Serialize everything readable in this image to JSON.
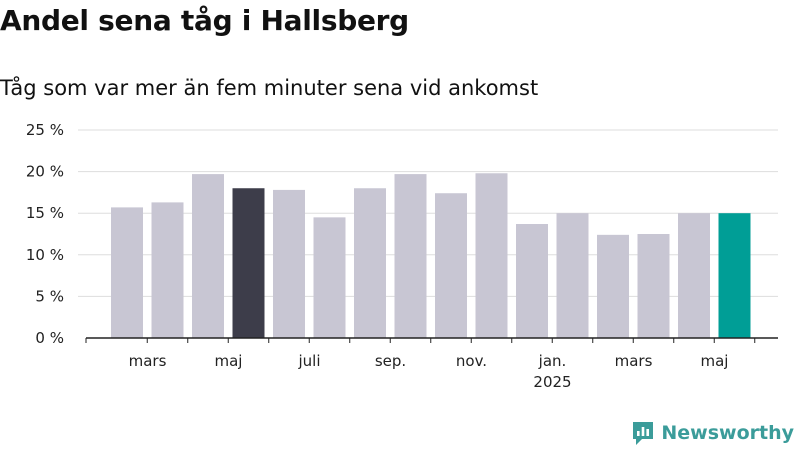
{
  "title": "Andel sena tåg i Hallsberg",
  "subtitle": "Tåg som var mer än fem minuter sena vid ankomst",
  "brand": "Newsworthy",
  "colors": {
    "bar": "#c8c6d3",
    "highlight_dark": "#3d3d4a",
    "highlight_teal": "#009e96",
    "grid": "#dddddd",
    "brand": "#3b9c9a"
  },
  "chart_data": {
    "type": "bar",
    "categories": [
      "2024-02",
      "2024-03",
      "2024-04",
      "2024-05",
      "2024-06",
      "2024-07",
      "2024-08",
      "2024-09",
      "2024-10",
      "2024-11",
      "2024-12",
      "2025-01",
      "2025-02",
      "2025-03",
      "2025-04",
      "2025-05"
    ],
    "values": [
      15.7,
      16.3,
      19.7,
      18.0,
      17.8,
      14.5,
      18.0,
      19.7,
      17.4,
      19.8,
      13.7,
      15.0,
      12.4,
      12.5,
      15.0,
      15.0
    ],
    "highlight": {
      "2024-05": "highlight_dark",
      "2025-05": "highlight_teal"
    },
    "ylim": [
      0,
      25
    ],
    "yticks": [
      {
        "value": 0,
        "label": "0 %"
      },
      {
        "value": 5,
        "label": "5 %"
      },
      {
        "value": 10,
        "label": "10 %"
      },
      {
        "value": 15,
        "label": "15 %"
      },
      {
        "value": 20,
        "label": "20 %"
      },
      {
        "value": 25,
        "label": "25 %"
      }
    ],
    "xticks": [
      {
        "category": "2024-03",
        "label": "mars"
      },
      {
        "category": "2024-05",
        "label": "maj"
      },
      {
        "category": "2024-07",
        "label": "juli"
      },
      {
        "category": "2024-09",
        "label": "sep."
      },
      {
        "category": "2024-11",
        "label": "nov."
      },
      {
        "category": "2025-01",
        "label": "jan.",
        "sublabel": "2025"
      },
      {
        "category": "2025-03",
        "label": "mars"
      },
      {
        "category": "2025-05",
        "label": "maj"
      }
    ],
    "grid": true,
    "xlabel": "",
    "ylabel": ""
  }
}
